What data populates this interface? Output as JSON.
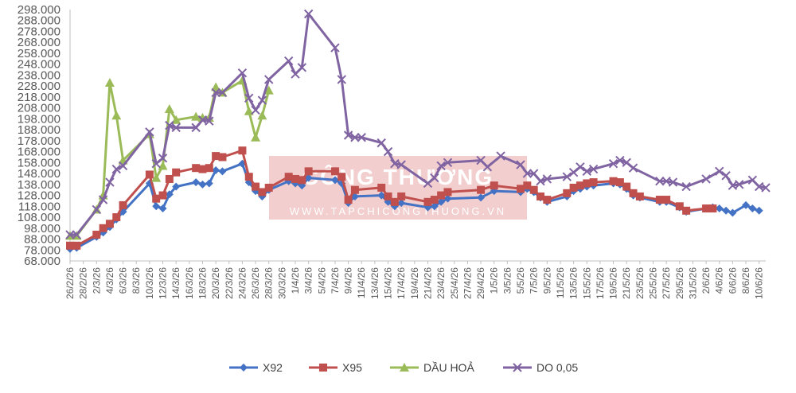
{
  "chart_data": {
    "type": "line",
    "title": "",
    "xlabel": "",
    "ylabel": "",
    "ylim": [
      68000,
      298000
    ],
    "yticks": [
      "68.000",
      "78.000",
      "88.000",
      "98.000",
      "108.000",
      "118.000",
      "128.000",
      "138.000",
      "148.000",
      "158.000",
      "168.000",
      "178.000",
      "188.000",
      "198.000",
      "208.000",
      "218.000",
      "228.000",
      "238.000",
      "248.000",
      "258.000",
      "268.000",
      "278.000",
      "288.000",
      "298.000"
    ],
    "xticks": [
      "26/2/26",
      "28/2/26",
      "2/3/26",
      "4/3/26",
      "6/3/26",
      "8/3/26",
      "10/3/26",
      "12/3/26",
      "14/3/26",
      "16/3/26",
      "18/3/26",
      "20/3/26",
      "22/3/26",
      "24/3/26",
      "26/3/26",
      "28/3/26",
      "30/3/26",
      "1/4/26",
      "3/4/26",
      "5/4/26",
      "7/4/26",
      "9/4/26",
      "11/4/26",
      "13/4/26",
      "15/4/26",
      "17/4/26",
      "19/4/26",
      "21/4/26",
      "23/4/26",
      "25/4/26",
      "27/4/26",
      "29/4/26",
      "1/5/26",
      "3/5/26",
      "5/5/26",
      "7/5/26",
      "9/5/26",
      "11/5/26",
      "13/5/26",
      "15/5/26",
      "17/5/26",
      "19/5/26",
      "21/5/26",
      "23/5/26",
      "25/5/26",
      "27/5/26",
      "29/5/26",
      "31/5/26",
      "2/6/26",
      "4/6/26",
      "6/6/26",
      "8/6/26",
      "10/6/26"
    ],
    "x_start": "26/2/26",
    "x_end": "11/6/26",
    "grid": false,
    "legend_position": "bottom",
    "watermark": {
      "title": "CÔNG THƯƠNG",
      "url": "WWW.TAPCHICONGTHUONG.VN"
    },
    "series": [
      {
        "name": "X92",
        "color": "#4472C4",
        "marker": "diamond",
        "points": [
          [
            "26/2/26",
            79000
          ],
          [
            "27/2/26",
            80000
          ],
          [
            "2/3/26",
            90000
          ],
          [
            "3/3/26",
            94000
          ],
          [
            "4/3/26",
            99000
          ],
          [
            "5/3/26",
            106000
          ],
          [
            "6/3/26",
            113000
          ],
          [
            "10/3/26",
            139000
          ],
          [
            "11/3/26",
            118000
          ],
          [
            "12/3/26",
            116000
          ],
          [
            "13/3/26",
            129000
          ],
          [
            "14/3/26",
            136000
          ],
          [
            "17/3/26",
            140000
          ],
          [
            "18/3/26",
            138000
          ],
          [
            "19/3/26",
            139000
          ],
          [
            "20/3/26",
            151000
          ],
          [
            "21/3/26",
            150000
          ],
          [
            "24/3/26",
            157000
          ],
          [
            "25/3/26",
            140000
          ],
          [
            "26/3/26",
            132000
          ],
          [
            "27/3/26",
            127000
          ],
          [
            "28/3/26",
            133000
          ],
          [
            "31/3/26",
            141000
          ],
          [
            "1/4/26",
            139000
          ],
          [
            "2/4/26",
            137000
          ],
          [
            "3/4/26",
            144000
          ],
          [
            "7/4/26",
            142000
          ],
          [
            "8/4/26",
            139000
          ],
          [
            "9/4/26",
            121000
          ],
          [
            "10/4/26",
            127000
          ],
          [
            "14/4/26",
            128000
          ],
          [
            "15/4/26",
            122000
          ],
          [
            "16/4/26",
            118000
          ],
          [
            "17/4/26",
            121000
          ],
          [
            "21/4/26",
            117000
          ],
          [
            "22/4/26",
            118000
          ],
          [
            "23/4/26",
            122000
          ],
          [
            "24/4/26",
            125000
          ],
          [
            "29/4/26",
            126000
          ],
          [
            "1/5/26",
            132000
          ],
          [
            "5/5/26",
            131000
          ],
          [
            "6/5/26",
            134000
          ],
          [
            "7/5/26",
            131000
          ],
          [
            "8/5/26",
            126000
          ],
          [
            "9/5/26",
            122000
          ],
          [
            "12/5/26",
            127000
          ],
          [
            "13/5/26",
            132000
          ],
          [
            "14/5/26",
            134000
          ],
          [
            "15/5/26",
            136000
          ],
          [
            "16/5/26",
            137000
          ],
          [
            "19/5/26",
            139000
          ],
          [
            "20/5/26",
            138000
          ],
          [
            "21/5/26",
            134000
          ],
          [
            "22/5/26",
            128000
          ],
          [
            "23/5/26",
            126000
          ],
          [
            "26/5/26",
            122000
          ],
          [
            "27/5/26",
            122000
          ],
          [
            "29/5/26",
            117000
          ],
          [
            "30/5/26",
            113000
          ],
          [
            "2/6/26",
            116000
          ],
          [
            "3/6/26",
            117000
          ],
          [
            "4/6/26",
            116000
          ],
          [
            "5/6/26",
            114000
          ],
          [
            "6/6/26",
            112000
          ],
          [
            "8/6/26",
            119000
          ],
          [
            "9/6/26",
            116000
          ],
          [
            "10/6/26",
            114000
          ]
        ]
      },
      {
        "name": "X95",
        "color": "#C0504D",
        "marker": "square",
        "points": [
          [
            "26/2/26",
            82000
          ],
          [
            "27/2/26",
            82000
          ],
          [
            "2/3/26",
            92000
          ],
          [
            "3/3/26",
            98000
          ],
          [
            "4/3/26",
            102000
          ],
          [
            "5/3/26",
            108000
          ],
          [
            "6/3/26",
            119000
          ],
          [
            "10/3/26",
            147000
          ],
          [
            "11/3/26",
            125000
          ],
          [
            "12/3/26",
            128000
          ],
          [
            "13/3/26",
            143000
          ],
          [
            "14/3/26",
            149000
          ],
          [
            "17/3/26",
            153000
          ],
          [
            "18/3/26",
            152000
          ],
          [
            "19/3/26",
            153000
          ],
          [
            "20/3/26",
            164000
          ],
          [
            "21/3/26",
            163000
          ],
          [
            "24/3/26",
            169000
          ],
          [
            "25/3/26",
            145000
          ],
          [
            "26/3/26",
            136000
          ],
          [
            "27/3/26",
            131000
          ],
          [
            "28/3/26",
            135000
          ],
          [
            "31/3/26",
            145000
          ],
          [
            "1/4/26",
            143000
          ],
          [
            "2/4/26",
            142000
          ],
          [
            "3/4/26",
            150000
          ],
          [
            "7/4/26",
            150000
          ],
          [
            "8/4/26",
            145000
          ],
          [
            "9/4/26",
            124000
          ],
          [
            "10/4/26",
            133000
          ],
          [
            "14/4/26",
            135000
          ],
          [
            "15/4/26",
            127000
          ],
          [
            "16/4/26",
            122000
          ],
          [
            "17/4/26",
            127000
          ],
          [
            "21/4/26",
            122000
          ],
          [
            "22/4/26",
            124000
          ],
          [
            "23/4/26",
            128000
          ],
          [
            "24/4/26",
            131000
          ],
          [
            "29/4/26",
            133000
          ],
          [
            "1/5/26",
            137000
          ],
          [
            "5/5/26",
            134000
          ],
          [
            "6/5/26",
            137000
          ],
          [
            "7/5/26",
            133000
          ],
          [
            "8/5/26",
            127000
          ],
          [
            "9/5/26",
            124000
          ],
          [
            "12/5/26",
            130000
          ],
          [
            "13/5/26",
            135000
          ],
          [
            "14/5/26",
            137000
          ],
          [
            "15/5/26",
            139000
          ],
          [
            "16/5/26",
            140000
          ],
          [
            "19/5/26",
            141000
          ],
          [
            "20/5/26",
            140000
          ],
          [
            "21/5/26",
            136000
          ],
          [
            "22/5/26",
            130000
          ],
          [
            "23/5/26",
            127000
          ],
          [
            "26/5/26",
            124000
          ],
          [
            "27/5/26",
            124000
          ],
          [
            "29/5/26",
            118000
          ],
          [
            "30/5/26",
            114000
          ],
          [
            "2/6/26",
            116000
          ],
          [
            "3/6/26",
            116000
          ]
        ]
      },
      {
        "name": "DẦU HOẢ",
        "color": "#9BBB59",
        "marker": "triangle",
        "points": [
          [
            "26/2/26",
            91000
          ],
          [
            "27/2/26",
            91000
          ],
          [
            "2/3/26",
            115000
          ],
          [
            "3/3/26",
            128000
          ],
          [
            "4/3/26",
            231000
          ],
          [
            "5/3/26",
            201000
          ],
          [
            "6/3/26",
            160000
          ],
          [
            "10/3/26",
            184000
          ],
          [
            "11/3/26",
            144000
          ],
          [
            "12/3/26",
            155000
          ],
          [
            "13/3/26",
            207000
          ],
          [
            "14/3/26",
            197000
          ],
          [
            "17/3/26",
            200000
          ],
          [
            "18/3/26",
            199000
          ],
          [
            "19/3/26",
            199000
          ],
          [
            "20/3/26",
            227000
          ],
          [
            "21/3/26",
            222000
          ],
          [
            "24/3/26",
            233000
          ],
          [
            "25/3/26",
            205000
          ],
          [
            "26/3/26",
            181000
          ],
          [
            "27/3/26",
            201000
          ],
          [
            "28/3/26",
            224000
          ]
        ]
      },
      {
        "name": "DO 0,05",
        "color": "#8064A2",
        "marker": "x",
        "points": [
          [
            "26/2/26",
            92000
          ],
          [
            "27/2/26",
            92000
          ],
          [
            "2/3/26",
            115000
          ],
          [
            "3/3/26",
            124000
          ],
          [
            "4/3/26",
            140000
          ],
          [
            "5/3/26",
            152000
          ],
          [
            "6/3/26",
            155000
          ],
          [
            "10/3/26",
            186000
          ],
          [
            "11/3/26",
            157000
          ],
          [
            "12/3/26",
            162000
          ],
          [
            "13/3/26",
            192000
          ],
          [
            "14/3/26",
            190000
          ],
          [
            "17/3/26",
            190000
          ],
          [
            "18/3/26",
            197000
          ],
          [
            "19/3/26",
            196000
          ],
          [
            "20/3/26",
            222000
          ],
          [
            "21/3/26",
            222000
          ],
          [
            "24/3/26",
            240000
          ],
          [
            "25/3/26",
            217000
          ],
          [
            "26/3/26",
            206000
          ],
          [
            "27/3/26",
            215000
          ],
          [
            "28/3/26",
            234000
          ],
          [
            "31/3/26",
            251000
          ],
          [
            "1/4/26",
            239000
          ],
          [
            "2/4/26",
            245000
          ],
          [
            "3/4/26",
            294000
          ],
          [
            "7/4/26",
            263000
          ],
          [
            "8/4/26",
            234000
          ],
          [
            "9/4/26",
            183000
          ],
          [
            "10/4/26",
            181000
          ],
          [
            "11/4/26",
            181000
          ],
          [
            "14/4/26",
            176000
          ],
          [
            "15/4/26",
            168000
          ],
          [
            "16/4/26",
            157000
          ],
          [
            "17/4/26",
            156000
          ],
          [
            "21/4/26",
            139000
          ],
          [
            "22/4/26",
            144000
          ],
          [
            "23/4/26",
            155000
          ],
          [
            "24/4/26",
            158000
          ],
          [
            "29/4/26",
            160000
          ],
          [
            "30/4/26",
            154000
          ],
          [
            "2/5/26",
            164000
          ],
          [
            "5/5/26",
            156000
          ],
          [
            "6/5/26",
            148000
          ],
          [
            "7/5/26",
            148000
          ],
          [
            "8/5/26",
            141000
          ],
          [
            "9/5/26",
            143000
          ],
          [
            "12/5/26",
            145000
          ],
          [
            "13/5/26",
            149000
          ],
          [
            "14/5/26",
            154000
          ],
          [
            "15/5/26",
            150000
          ],
          [
            "16/5/26",
            152000
          ],
          [
            "19/5/26",
            157000
          ],
          [
            "20/5/26",
            160000
          ],
          [
            "21/5/26",
            158000
          ],
          [
            "22/5/26",
            153000
          ],
          [
            "26/5/26",
            141000
          ],
          [
            "27/5/26",
            141000
          ],
          [
            "28/5/26",
            140000
          ],
          [
            "30/5/26",
            136000
          ],
          [
            "2/6/26",
            143000
          ],
          [
            "4/6/26",
            150000
          ],
          [
            "5/6/26",
            146000
          ],
          [
            "6/6/26",
            137000
          ],
          [
            "7/6/26",
            138000
          ],
          [
            "9/6/26",
            142000
          ],
          [
            "10/6/26",
            136000
          ],
          [
            "11/6/26",
            135000
          ]
        ]
      }
    ]
  }
}
